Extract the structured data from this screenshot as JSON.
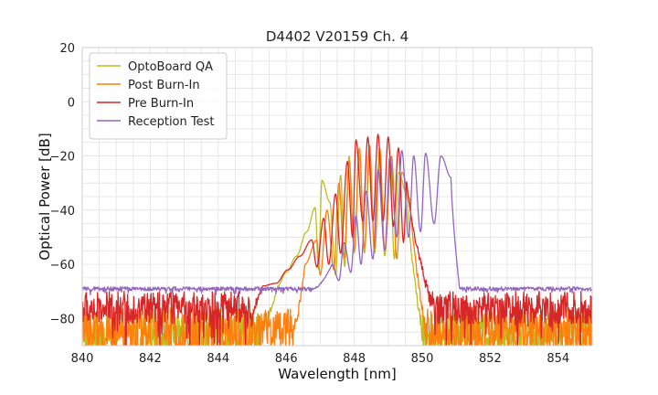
{
  "chart_data": {
    "type": "line",
    "title": "D4402 V20159 Ch. 4",
    "xlabel": "Wavelength [nm]",
    "ylabel": "Optical Power [dB]",
    "xlim": [
      840,
      855
    ],
    "ylim": [
      -90,
      20
    ],
    "xticks": [
      840,
      842,
      844,
      846,
      848,
      850,
      852,
      854
    ],
    "yticks": [
      20,
      0,
      -20,
      -40,
      -60,
      -80
    ],
    "xtick_labels": [
      "840",
      "842",
      "844",
      "846",
      "848",
      "850",
      "852",
      "854"
    ],
    "ytick_labels": [
      "20",
      "0",
      "−20",
      "−40",
      "−60",
      "−80"
    ],
    "grid": true,
    "legend_position": "top-left",
    "series": [
      {
        "name": "OptoBoard QA",
        "color": "#bcbd22",
        "floor": -85,
        "noise": 7,
        "peaks": [
          [
            845.75,
            -68
          ],
          [
            846.0,
            -63
          ],
          [
            846.3,
            -57
          ],
          [
            846.6,
            -48
          ],
          [
            846.85,
            -39
          ],
          [
            847.05,
            -29
          ],
          [
            847.28,
            -37
          ],
          [
            847.6,
            -27
          ],
          [
            847.85,
            -20
          ],
          [
            848.15,
            -20
          ],
          [
            848.45,
            -20
          ],
          [
            848.75,
            -21
          ],
          [
            849.05,
            -22
          ],
          [
            849.3,
            -26
          ],
          [
            849.55,
            -34
          ]
        ],
        "dips": [
          [
            846.95,
            -62
          ],
          [
            847.45,
            -64
          ],
          [
            847.72,
            -61
          ],
          [
            848.0,
            -56
          ],
          [
            848.3,
            -56
          ],
          [
            848.6,
            -56
          ],
          [
            848.9,
            -57
          ],
          [
            849.18,
            -58
          ]
        ],
        "edges": [
          845.2,
          850.0
        ]
      },
      {
        "name": "Post Burn-In",
        "color": "#ff7f0e",
        "floor": -84,
        "noise": 8,
        "peaks": [
          [
            846.55,
            -60
          ],
          [
            846.9,
            -51
          ],
          [
            847.2,
            -40
          ],
          [
            847.55,
            -30
          ],
          [
            847.85,
            -22
          ],
          [
            848.15,
            -17
          ],
          [
            848.45,
            -16
          ],
          [
            848.75,
            -17
          ],
          [
            849.1,
            -20
          ],
          [
            849.4,
            -26
          ],
          [
            849.65,
            -36
          ]
        ],
        "dips": [
          [
            847.0,
            -64
          ],
          [
            847.4,
            -62
          ],
          [
            847.7,
            -58
          ],
          [
            848.0,
            -55
          ],
          [
            848.3,
            -54
          ],
          [
            848.6,
            -54
          ],
          [
            848.9,
            -55
          ],
          [
            849.25,
            -58
          ]
        ],
        "edges": [
          846.2,
          850.1
        ]
      },
      {
        "name": "Pre Burn-In",
        "color": "#d62728",
        "floor": -76,
        "noise": 6,
        "peaks": [
          [
            845.3,
            -68
          ],
          [
            845.7,
            -67
          ],
          [
            846.05,
            -62
          ],
          [
            846.4,
            -57
          ],
          [
            846.75,
            -51
          ],
          [
            847.1,
            -43
          ],
          [
            847.45,
            -34
          ],
          [
            847.8,
            -22
          ],
          [
            848.05,
            -14
          ],
          [
            848.4,
            -13
          ],
          [
            848.7,
            -12
          ],
          [
            849.0,
            -13
          ],
          [
            849.3,
            -17
          ],
          [
            849.55,
            -29
          ]
        ],
        "dips": [
          [
            846.9,
            -61
          ],
          [
            847.25,
            -60
          ],
          [
            847.6,
            -56
          ],
          [
            847.95,
            -50
          ],
          [
            848.25,
            -44
          ],
          [
            848.55,
            -44
          ],
          [
            848.85,
            -44
          ],
          [
            849.15,
            -46
          ],
          [
            849.45,
            -52
          ]
        ],
        "edges": [
          845.0,
          850.3
        ]
      },
      {
        "name": "Reception Test",
        "color": "#9467bd",
        "floor": -69,
        "noise": 0.7,
        "peaks": [
          [
            847.35,
            -60
          ],
          [
            847.7,
            -52
          ],
          [
            848.05,
            -42
          ],
          [
            848.35,
            -33
          ],
          [
            848.7,
            -25
          ],
          [
            849.05,
            -20
          ],
          [
            849.4,
            -18
          ],
          [
            849.75,
            -20
          ],
          [
            850.1,
            -19
          ],
          [
            850.55,
            -20
          ],
          [
            850.85,
            -28
          ]
        ],
        "dips": [
          [
            847.55,
            -66
          ],
          [
            847.9,
            -63
          ],
          [
            848.2,
            -60
          ],
          [
            848.55,
            -58
          ],
          [
            848.9,
            -55
          ],
          [
            849.25,
            -50
          ],
          [
            849.6,
            -50
          ],
          [
            849.95,
            -48
          ],
          [
            850.35,
            -45
          ]
        ],
        "edges": [
          846.8,
          851.1
        ]
      }
    ]
  }
}
